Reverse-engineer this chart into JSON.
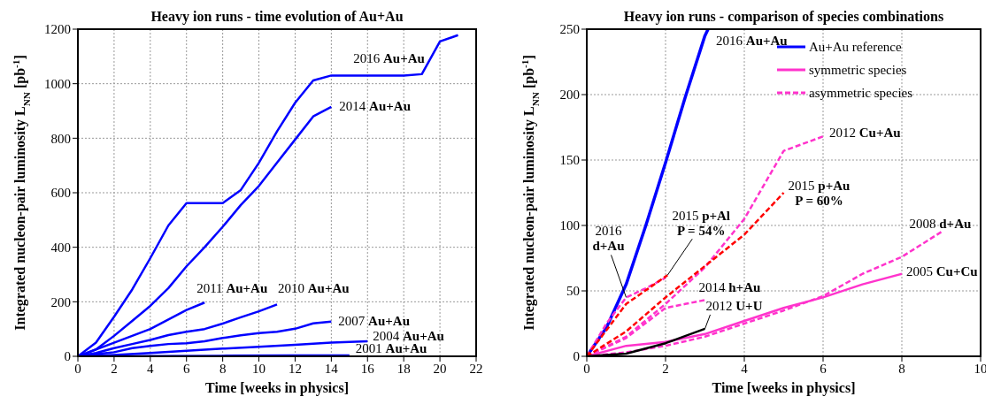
{
  "chart_data": [
    {
      "type": "line",
      "title": "Heavy ion runs - time evolution of Au+Au",
      "xlabel": "Time [weeks in physics]",
      "ylabel": "Integrated nucleon-pair luminosity L$_{NN}$ [pb$^{-1}$]",
      "xlim": [
        0,
        22
      ],
      "xticks": [
        0,
        2,
        4,
        6,
        8,
        10,
        12,
        14,
        16,
        18,
        20,
        22
      ],
      "ylim": [
        0,
        1200
      ],
      "yticks": [
        0,
        200,
        400,
        600,
        800,
        1000,
        1200
      ],
      "grid": true,
      "series": [
        {
          "color": "#0000ff",
          "x": [
            0,
            1,
            2,
            3,
            4,
            5,
            6,
            8,
            9,
            10,
            11,
            12,
            13,
            14,
            16,
            18,
            19,
            20,
            21
          ],
          "values": [
            0,
            50,
            145,
            245,
            360,
            480,
            562,
            562,
            610,
            710,
            825,
            930,
            1012,
            1030,
            1030,
            1030,
            1035,
            1155,
            1178
          ]
        },
        {
          "color": "#0000ff",
          "x": [
            0,
            1,
            2,
            3,
            4,
            5,
            6,
            7,
            8,
            9,
            10,
            11,
            12,
            13,
            14
          ],
          "values": [
            0,
            25,
            75,
            130,
            185,
            250,
            330,
            400,
            475,
            555,
            625,
            710,
            795,
            880,
            915
          ]
        },
        {
          "color": "#0000ff",
          "x": [
            0,
            2,
            4,
            6,
            7
          ],
          "values": [
            0,
            50,
            100,
            170,
            197
          ]
        },
        {
          "color": "#0000ff",
          "x": [
            0,
            1,
            2,
            3,
            4,
            5,
            6,
            7,
            8,
            9,
            10,
            11
          ],
          "values": [
            0,
            12,
            30,
            45,
            60,
            78,
            90,
            100,
            120,
            143,
            165,
            190
          ]
        },
        {
          "color": "#0000ff",
          "x": [
            0,
            1,
            2,
            3,
            4,
            5,
            6,
            7,
            8,
            9,
            10,
            11,
            12,
            13,
            14
          ],
          "values": [
            0,
            8,
            15,
            30,
            38,
            45,
            48,
            55,
            67,
            77,
            85,
            90,
            101,
            121,
            127
          ]
        },
        {
          "color": "#0000ff",
          "x": [
            0,
            2,
            4,
            6,
            8,
            10,
            12,
            14,
            16
          ],
          "values": [
            0,
            5,
            12,
            20,
            28,
            35,
            42,
            50,
            55
          ]
        },
        {
          "color": "#0000ff",
          "x": [
            0,
            4,
            8,
            12,
            15
          ],
          "values": [
            0,
            1,
            2,
            3,
            3
          ]
        }
      ],
      "annotations": [
        {
          "text": "2016 Au+Au",
          "x": 16,
          "y": 1030
        },
        {
          "text": "2014 Au+Au",
          "x": 14,
          "y": 915
        },
        {
          "text": "2011 Au+Au",
          "x": 7,
          "y": 197
        },
        {
          "text": "2010 Au+Au",
          "x": 11,
          "y": 190
        },
        {
          "text": "2007 Au+Au",
          "x": 14,
          "y": 127
        },
        {
          "text": "2004 Au+Au",
          "x": 16,
          "y": 55
        },
        {
          "text": "2001 Au+Au",
          "x": 15,
          "y": 3
        }
      ]
    },
    {
      "type": "line",
      "title": "Heavy ion runs - comparison of species combinations",
      "xlabel": "Time [weeks in physics]",
      "ylabel": "Integrated nucleon-pair luminosity L$_{NN}$ [pb$^{-1}$]",
      "xlim": [
        0,
        10
      ],
      "xticks": [
        0,
        2,
        4,
        6,
        8,
        10
      ],
      "ylim": [
        0,
        250
      ],
      "yticks": [
        0,
        50,
        100,
        150,
        200,
        250
      ],
      "grid": true,
      "legend": "top right",
      "series": [
        {
          "name": "Au+Au reference",
          "color": "#0000ff",
          "x": [
            0,
            0.5,
            1,
            1.5,
            2,
            2.5,
            3,
            3.08
          ],
          "values": [
            0,
            22,
            55,
            100,
            148,
            198,
            245,
            250
          ]
        },
        {
          "name": "symmetric species",
          "color": "#ff33cc",
          "x": [
            0,
            1,
            2,
            3,
            4,
            5,
            6,
            7,
            8
          ],
          "values": [
            0,
            8,
            11,
            17,
            27,
            37,
            45,
            55,
            63
          ]
        },
        {
          "name": "asymmetric species",
          "color": "#ff33cc",
          "line_style": "dashed",
          "x": [
            0,
            1,
            2,
            3,
            4,
            5,
            6
          ],
          "values": [
            0,
            15,
            40,
            68,
            105,
            157,
            168
          ]
        },
        {
          "color": "#ff33cc",
          "line_style": "dashed",
          "x": [
            0,
            1,
            2,
            3,
            4,
            5,
            6,
            7,
            8,
            9
          ],
          "values": [
            0,
            3,
            8,
            15,
            25,
            35,
            46,
            63,
            76,
            95
          ]
        },
        {
          "color": "#ff33cc",
          "line_style": "dashed",
          "x": [
            0,
            1,
            2,
            2.5,
            3
          ],
          "values": [
            0,
            14,
            37,
            40,
            43
          ]
        },
        {
          "color": "#ff33cc",
          "line_style": "dashed",
          "x": [
            0,
            0.5,
            1,
            1.5,
            2
          ],
          "values": [
            0,
            25,
            45,
            52,
            60
          ]
        },
        {
          "color": "#ff0000",
          "line_style": "dashed",
          "x": [
            0,
            1,
            2,
            3,
            4,
            5
          ],
          "values": [
            0,
            19,
            45,
            69,
            93,
            125
          ]
        },
        {
          "color": "#ff0000",
          "line_style": "dashed",
          "x": [
            0,
            1,
            2.05
          ],
          "values": [
            0,
            40,
            62
          ]
        },
        {
          "color": "#000000",
          "x": [
            0,
            1,
            2,
            3
          ],
          "values": [
            0,
            2,
            10,
            21
          ]
        }
      ],
      "annotations": [
        {
          "text": "2016 Au+Au",
          "x": 3.08,
          "y": 250
        },
        {
          "text": "2012 Cu+Au",
          "x": 6,
          "y": 168
        },
        {
          "text": "2015 p+Au\nP = 60%",
          "x": 5,
          "y": 125
        },
        {
          "text": "2008 d+Au",
          "x": 9,
          "y": 95
        },
        {
          "text": "2005 Cu+Cu",
          "x": 8,
          "y": 63
        },
        {
          "text": "2014 h+Au",
          "x": 3,
          "y": 43
        },
        {
          "text": "2012 U+U",
          "x": 3,
          "y": 21
        },
        {
          "text": "2015 p+Al\nP = 54%",
          "x": 2.05,
          "y": 62
        },
        {
          "text": "2016\nd+Au",
          "x": 1,
          "y": 45
        }
      ]
    }
  ]
}
